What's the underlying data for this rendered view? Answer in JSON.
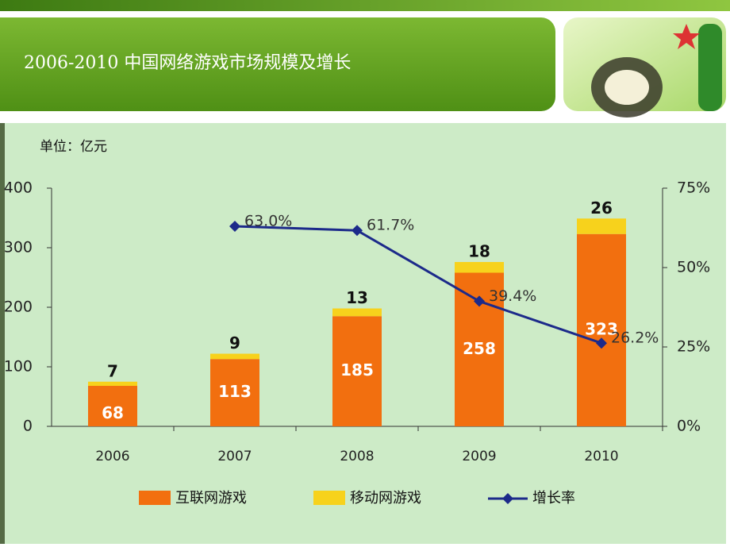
{
  "chart_data": {
    "type": "bar",
    "stacked": true,
    "title": "2006-2010 中国网络游戏市场规模及增长",
    "unit_label": "单位：亿元",
    "categories": [
      "2006",
      "2007",
      "2008",
      "2009",
      "2010"
    ],
    "series": [
      {
        "name": "互联网游戏",
        "color": "#f26f0f",
        "values": [
          68,
          113,
          185,
          258,
          323
        ]
      },
      {
        "name": "移动网游戏",
        "color": "#f7d21c",
        "values": [
          7,
          9,
          13,
          18,
          26
        ]
      },
      {
        "name": "增长率",
        "color": "#1c2a8a",
        "type": "line",
        "axis": "y2",
        "values": [
          null,
          63.0,
          61.7,
          39.4,
          26.2
        ],
        "value_labels": [
          null,
          "63.0%",
          "61.7%",
          "39.4%",
          "26.2%"
        ]
      }
    ],
    "ylim": [
      0,
      400
    ],
    "yticks": [
      0,
      100,
      200,
      300,
      400
    ],
    "y2lim": [
      0,
      75
    ],
    "y2ticks": [
      {
        "value": 0,
        "label": "0%"
      },
      {
        "value": 25,
        "label": "25%"
      },
      {
        "value": 50,
        "label": "50%"
      },
      {
        "value": 75,
        "label": "75%"
      }
    ]
  }
}
